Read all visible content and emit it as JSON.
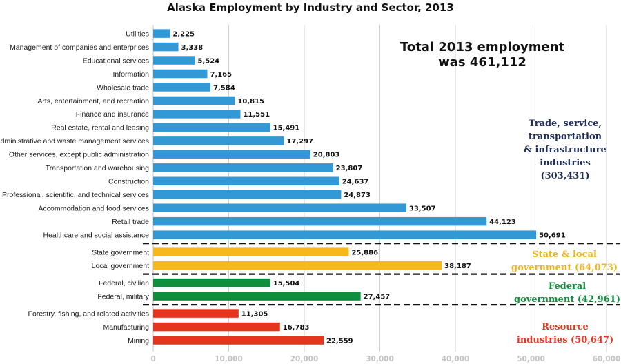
{
  "chart_data": {
    "type": "bar",
    "orientation": "horizontal",
    "title": "Alaska Employment by Industry and Sector, 2013",
    "xlim": [
      0,
      60000
    ],
    "x_ticks": [
      "0",
      "10,000",
      "20,000",
      "30,000",
      "40,000",
      "50,000",
      "60,000"
    ],
    "grid": true,
    "annotations": {
      "total_line1": "Total 2013 employment",
      "total_line2": "was 461,112"
    },
    "groups": [
      {
        "name_lines": [
          "Trade, service,",
          "transportation",
          "& infrastructure",
          "industries",
          "(303,431)"
        ],
        "color": "#3399d6",
        "label_color": "#1f2d5c",
        "bars": [
          {
            "category": "Utilities",
            "value": 2225,
            "label": "2,225"
          },
          {
            "category": "Management of companies and enterprises",
            "value": 3338,
            "label": "3,338"
          },
          {
            "category": "Educational services",
            "value": 5524,
            "label": "5,524"
          },
          {
            "category": "Information",
            "value": 7165,
            "label": "7,165"
          },
          {
            "category": "Wholesale trade",
            "value": 7584,
            "label": "7,584"
          },
          {
            "category": "Arts, entertainment, and recreation",
            "value": 10815,
            "label": "10,815"
          },
          {
            "category": "Finance and insurance",
            "value": 11551,
            "label": "11,551"
          },
          {
            "category": "Real estate, rental and leasing",
            "value": 15491,
            "label": "15,491"
          },
          {
            "category": "Administrative and waste management services",
            "value": 17297,
            "label": "17,297"
          },
          {
            "category": "Other services, except public administration",
            "value": 20803,
            "label": "20,803"
          },
          {
            "category": "Transportation and warehousing",
            "value": 23807,
            "label": "23,807"
          },
          {
            "category": "Construction",
            "value": 24637,
            "label": "24,637"
          },
          {
            "category": "Professional, scientific, and technical services",
            "value": 24873,
            "label": "24,873"
          },
          {
            "category": "Accommodation and food services",
            "value": 33507,
            "label": "33,507"
          },
          {
            "category": "Retail trade",
            "value": 44123,
            "label": "44,123"
          },
          {
            "category": "Healthcare and social assistance",
            "value": 50691,
            "label": "50,691"
          }
        ]
      },
      {
        "name_lines": [
          "State & local",
          "government (64,073)"
        ],
        "color": "#f7b81c",
        "label_color": "#f0b41c",
        "bars": [
          {
            "category": "State government",
            "value": 25886,
            "label": "25,886"
          },
          {
            "category": "Local government",
            "value": 38187,
            "label": "38,187"
          }
        ]
      },
      {
        "name_lines": [
          "Federal",
          "government (42,961)"
        ],
        "color": "#0f8f3b",
        "label_color": "#0f8f3b",
        "bars": [
          {
            "category": "Federal, civilian",
            "value": 15504,
            "label": "15,504"
          },
          {
            "category": "Federal, military",
            "value": 27457,
            "label": "27,457"
          }
        ]
      },
      {
        "name_lines": [
          "Resource",
          "industries (50,647)"
        ],
        "color": "#e4361f",
        "label_color": "#e4361f",
        "bars": [
          {
            "category": "Forestry, fishing, and related activities",
            "value": 11305,
            "label": "11,305"
          },
          {
            "category": "Manufacturing",
            "value": 16783,
            "label": "16,783"
          },
          {
            "category": "Mining",
            "value": 22559,
            "label": "22,559"
          }
        ]
      }
    ]
  }
}
